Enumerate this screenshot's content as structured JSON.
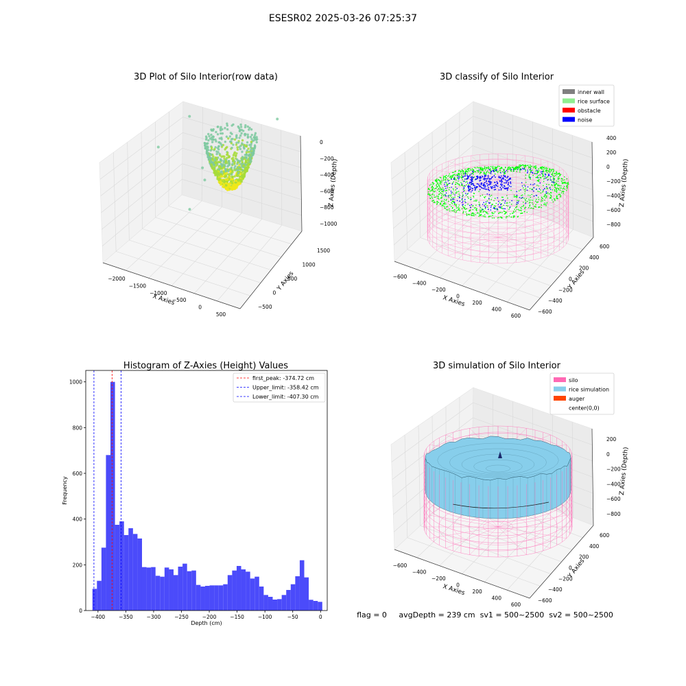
{
  "figure": {
    "suptitle": "ESESR02 2025-03-26 07:25:37",
    "status_text": "flag = 0     avgDepth = 239 cm  sv1 = 500~2500  sv2 = 500~2500"
  },
  "chart_data": [
    {
      "type": "scatter3d",
      "title": "3D Plot of Silo Interior(row data)",
      "xlabel": "X Axies",
      "ylabel": "Y Axies",
      "zlabel": "Z Axies (Depth)",
      "xticks": [
        "−2000",
        "−1500",
        "−1000",
        "−500",
        "0",
        "500"
      ],
      "yticks": [
        "−500",
        "0",
        "500",
        "1000",
        "1500"
      ],
      "zticks": [
        "0",
        "−200",
        "−400",
        "−600",
        "−800",
        "−1000"
      ],
      "xlim": [
        -2200,
        700
      ],
      "ylim": [
        -600,
        1600
      ],
      "zlim": [
        -1100,
        0
      ],
      "colors": {
        "low": "#7ec9a0",
        "high": "#f0e81a",
        "mid": "#a7dc3a"
      }
    },
    {
      "type": "scatter3d",
      "title": "3D classify of Silo Interior",
      "xlabel": "X Axies",
      "ylabel": "Y Axies",
      "zlabel": "Z Axies (Depth)",
      "xticks": [
        "−600",
        "−400",
        "−200",
        "0",
        "200",
        "400",
        "600"
      ],
      "yticks": [
        "−600",
        "−400",
        "−200",
        "0",
        "200",
        "400",
        "600"
      ],
      "zticks": [
        "400",
        "200",
        "0",
        "−200",
        "−400",
        "−600",
        "−800"
      ],
      "xlim": [
        -650,
        650
      ],
      "ylim": [
        -650,
        650
      ],
      "zlim": [
        -900,
        400
      ],
      "legend_position": "upper right",
      "legend": [
        {
          "label": "inner wall",
          "color": "#808080"
        },
        {
          "label": "rice surface",
          "color": "#90ee90"
        },
        {
          "label": "obstacle",
          "color": "#ff0000"
        },
        {
          "label": "noise",
          "color": "#0000ff"
        }
      ],
      "colors": {
        "wall": "#ff8fc7",
        "surface": "#00ff00",
        "noise": "#0000ff"
      }
    },
    {
      "type": "bar",
      "title": "Histogram of Z-Axies (Height) Values",
      "xlabel": "Depth (cm)",
      "ylabel": "Frequency",
      "xlim": [
        -422,
        12
      ],
      "ylim": [
        0,
        1050
      ],
      "xticks": [
        -400,
        -350,
        -300,
        -250,
        -200,
        -150,
        -100,
        -50,
        0
      ],
      "xtick_labels": [
        "−400",
        "−350",
        "−300",
        "−250",
        "−200",
        "−150",
        "−100",
        "−50",
        "0"
      ],
      "yticks": [
        0,
        200,
        400,
        600,
        800,
        1000
      ],
      "ytick_labels": [
        "0",
        "200",
        "400",
        "600",
        "800",
        "1000"
      ],
      "bar_color": "#4b4bfa",
      "bins_start": -410,
      "bin_width": 8.1,
      "values": [
        95,
        130,
        275,
        680,
        1000,
        375,
        390,
        330,
        360,
        335,
        315,
        190,
        188,
        190,
        152,
        148,
        188,
        180,
        155,
        192,
        205,
        172,
        175,
        112,
        105,
        108,
        110,
        110,
        110,
        115,
        155,
        175,
        195,
        180,
        170,
        140,
        148,
        105,
        68,
        60,
        48,
        50,
        68,
        90,
        115,
        150,
        220,
        145,
        47,
        42,
        38
      ],
      "lines": [
        {
          "label": "first_peak: -374.72 cm",
          "x": -374.72,
          "color": "#ff0000"
        },
        {
          "label": "Upper_limit: -358.42 cm",
          "x": -358.42,
          "color": "#0000ff"
        },
        {
          "label": "Lower_limit: -407.30 cm",
          "x": -407.3,
          "color": "#0000ff"
        }
      ],
      "legend_position": "upper right"
    },
    {
      "type": "surface3d",
      "title": "3D simulation of Silo Interior",
      "xlabel": "X Axies",
      "ylabel": "Y Axies",
      "zlabel": "Z Axies (Depth)",
      "xticks": [
        "−600",
        "−400",
        "−200",
        "0",
        "200",
        "400",
        "600"
      ],
      "yticks": [
        "−600",
        "−400",
        "−200",
        "0",
        "200",
        "400",
        "600"
      ],
      "zticks": [
        "200",
        "0",
        "−200",
        "−400",
        "−600",
        "−800"
      ],
      "xlim": [
        -650,
        650
      ],
      "ylim": [
        -650,
        650
      ],
      "zlim": [
        -900,
        300
      ],
      "legend_position": "upper right",
      "legend": [
        {
          "label": "silo",
          "color": "#ff69b4"
        },
        {
          "label": "rice simulation",
          "color": "#87ceeb"
        },
        {
          "label": "auger",
          "color": "#ff4500"
        },
        {
          "label": "center(0,0)",
          "color": ""
        }
      ],
      "colors": {
        "silo": "#ff69b4",
        "rice": "#87ceeb",
        "mesh": "#2f5f73"
      }
    }
  ]
}
